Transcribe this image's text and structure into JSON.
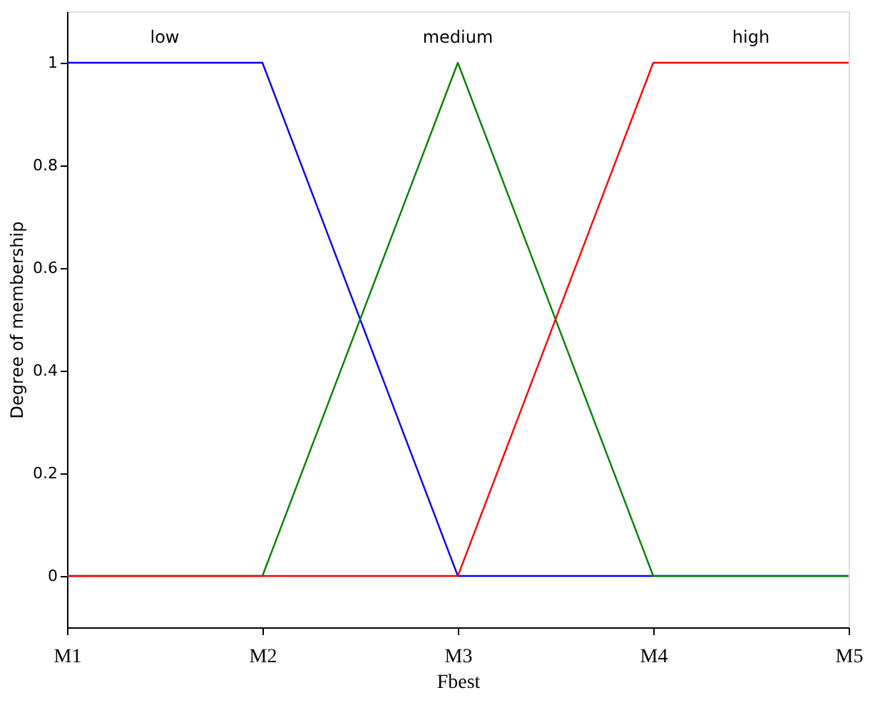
{
  "chart_data": {
    "type": "line",
    "xlabel": "Fbest",
    "ylabel": "Degree of membership",
    "categories": [
      "M1",
      "M2",
      "M3",
      "M4",
      "M5"
    ],
    "ylim": [
      -0.1,
      1.1
    ],
    "yticks": [
      0,
      0.2,
      0.4,
      0.6,
      0.8,
      1
    ],
    "grid": false,
    "marker": "none",
    "line_style": "solid",
    "series": [
      {
        "name": "low",
        "color": "#0000ff",
        "values": [
          1,
          1,
          0,
          0,
          0
        ]
      },
      {
        "name": "medium",
        "color": "#008000",
        "values": [
          0,
          0,
          1,
          0,
          0
        ]
      },
      {
        "name": "high",
        "color": "#ff0000",
        "values": [
          0,
          0,
          0,
          1,
          1
        ]
      }
    ]
  }
}
